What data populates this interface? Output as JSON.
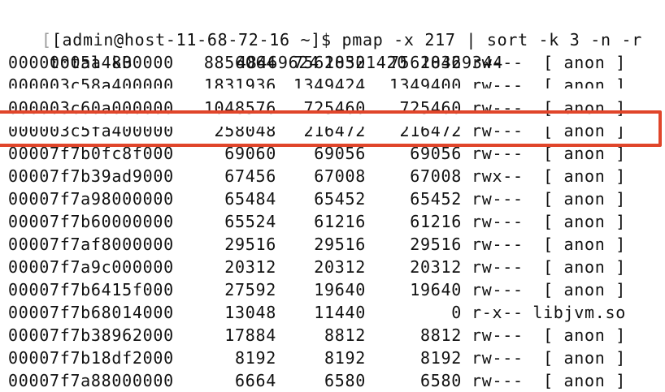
{
  "terminal": {
    "prompt_open": "[",
    "prompt_rest": "[admin@host-11-68-72-16 ~]$ ",
    "command": "pmap -x 217 | sort -k 3 -n -r",
    "total": {
      "label": "total kB",
      "kbytes": "48469624",
      "rss": "10501420",
      "dirty": "10469344"
    },
    "rows": [
      {
        "addr": "00000005a4800000",
        "kbytes": "8856064",
        "rss": "7562832",
        "dirty": "7562832",
        "mode": "rw---",
        "mapping": "[ anon ]"
      },
      {
        "addr": "000003c58a400000",
        "kbytes": "1831936",
        "rss": "1349424",
        "dirty": "1349400",
        "mode": "rw---",
        "mapping": "[ anon ]"
      },
      {
        "addr": "000003c60a000000",
        "kbytes": "1048576",
        "rss": "725460",
        "dirty": "725460",
        "mode": "rw---",
        "mapping": "[ anon ]"
      },
      {
        "addr": "000003c5fa400000",
        "kbytes": "258048",
        "rss": "216472",
        "dirty": "216472",
        "mode": "rw---",
        "mapping": "[ anon ]"
      },
      {
        "addr": "00007f7b0fc8f000",
        "kbytes": "69060",
        "rss": "69056",
        "dirty": "69056",
        "mode": "rw---",
        "mapping": "[ anon ]"
      },
      {
        "addr": "00007f7b39ad9000",
        "kbytes": "67456",
        "rss": "67008",
        "dirty": "67008",
        "mode": "rwx--",
        "mapping": "[ anon ]"
      },
      {
        "addr": "00007f7a98000000",
        "kbytes": "65484",
        "rss": "65452",
        "dirty": "65452",
        "mode": "rw---",
        "mapping": "[ anon ]"
      },
      {
        "addr": "00007f7b60000000",
        "kbytes": "65524",
        "rss": "61216",
        "dirty": "61216",
        "mode": "rw---",
        "mapping": "[ anon ]"
      },
      {
        "addr": "00007f7af8000000",
        "kbytes": "29516",
        "rss": "29516",
        "dirty": "29516",
        "mode": "rw---",
        "mapping": "[ anon ]"
      },
      {
        "addr": "00007f7a9c000000",
        "kbytes": "20312",
        "rss": "20312",
        "dirty": "20312",
        "mode": "rw---",
        "mapping": "[ anon ]"
      },
      {
        "addr": "00007f7b6415f000",
        "kbytes": "27592",
        "rss": "19640",
        "dirty": "19640",
        "mode": "rw---",
        "mapping": "[ anon ]"
      },
      {
        "addr": "00007f7b68014000",
        "kbytes": "13048",
        "rss": "11440",
        "dirty": "0",
        "mode": "r-x--",
        "mapping": "libjvm.so"
      },
      {
        "addr": "00007f7b38962000",
        "kbytes": "17884",
        "rss": "8812",
        "dirty": "8812",
        "mode": "rw---",
        "mapping": "[ anon ]"
      },
      {
        "addr": "00007f7b18df2000",
        "kbytes": "8192",
        "rss": "8192",
        "dirty": "8192",
        "mode": "rw---",
        "mapping": "[ anon ]"
      },
      {
        "addr": "00007f7a88000000",
        "kbytes": "6664",
        "rss": "6580",
        "dirty": "6580",
        "mode": "rw---",
        "mapping": "[ anon ]"
      }
    ],
    "highlighted_row_index": 2,
    "highlight_color": "#e0452a"
  }
}
